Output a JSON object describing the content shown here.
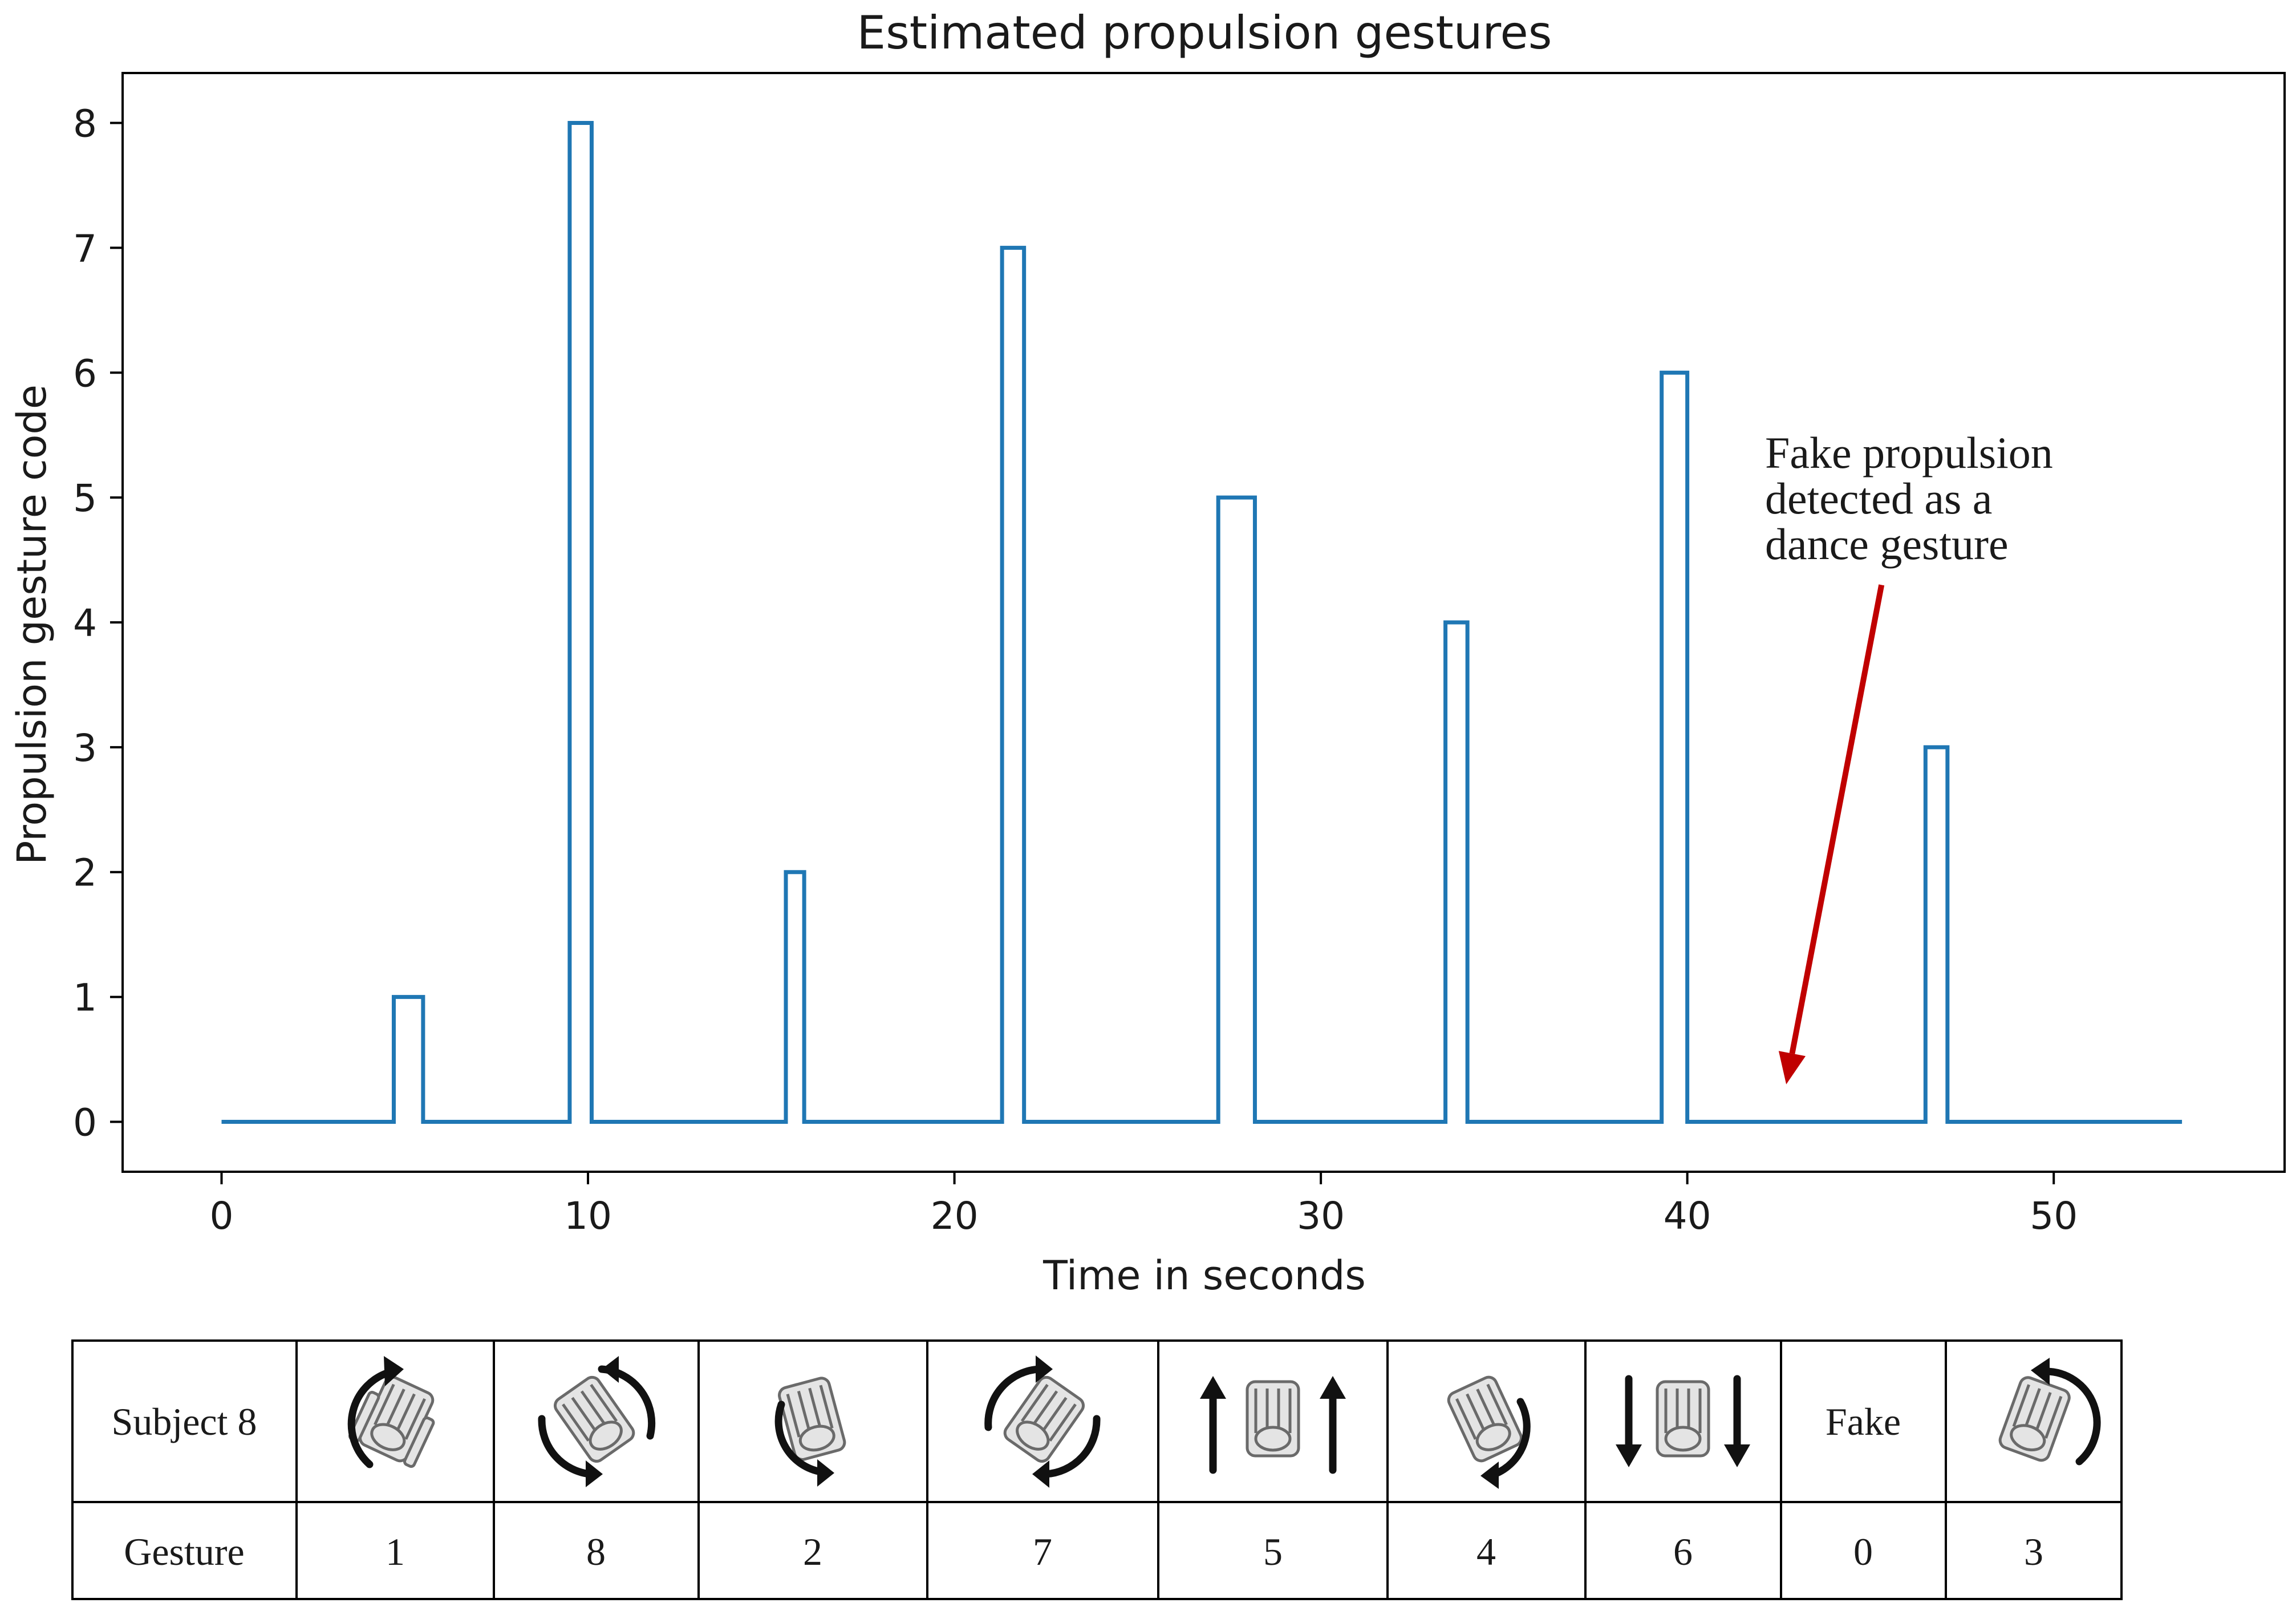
{
  "chart_data": {
    "type": "line",
    "title": "Estimated propulsion gestures",
    "xlabel": "Time in seconds",
    "ylabel": "Propulsion gesture code",
    "xlim": [
      -2.7,
      56.3
    ],
    "ylim": [
      -0.4,
      8.4
    ],
    "xticks": [
      0,
      10,
      20,
      30,
      40,
      50
    ],
    "yticks": [
      0,
      1,
      2,
      3,
      4,
      5,
      6,
      7,
      8
    ],
    "grid": false,
    "series": [
      {
        "name": "Estimated propulsion gesture",
        "color": "#1f77b4",
        "step": "post",
        "x": [
          0,
          4.7,
          5.5,
          9.5,
          10.1,
          15.4,
          15.9,
          21.3,
          21.9,
          27.2,
          28.2,
          33.4,
          34.0,
          39.3,
          40.0,
          46.5,
          47.1,
          53.5
        ],
        "y": [
          0,
          1,
          0,
          8,
          0,
          2,
          0,
          7,
          0,
          5,
          0,
          4,
          0,
          6,
          0,
          3,
          0,
          0
        ]
      }
    ],
    "annotation": {
      "lines": [
        "Fake propulsion",
        "detected    as    a",
        "dance gesture"
      ],
      "color": "#c00000",
      "arrow_from": [
        45.3,
        4.3
      ],
      "arrow_to": [
        42.7,
        0.3
      ]
    }
  },
  "gesture_table": {
    "row_headers": [
      "Subject 8",
      "Gesture"
    ],
    "columns": [
      {
        "icon": "rotate-right-icon",
        "code": "1"
      },
      {
        "icon": "spin-clockwise-icon",
        "code": "8"
      },
      {
        "icon": "rotate-left-icon",
        "code": "2"
      },
      {
        "icon": "spin-counterclockwise-icon",
        "code": "7"
      },
      {
        "icon": "forward-arrows-icon",
        "code": "5"
      },
      {
        "icon": "turn-right-icon",
        "code": "4"
      },
      {
        "icon": "backward-arrows-icon",
        "code": "6"
      },
      {
        "text": "Fake",
        "code": "0"
      },
      {
        "icon": "turn-left-icon",
        "code": "3"
      }
    ]
  }
}
